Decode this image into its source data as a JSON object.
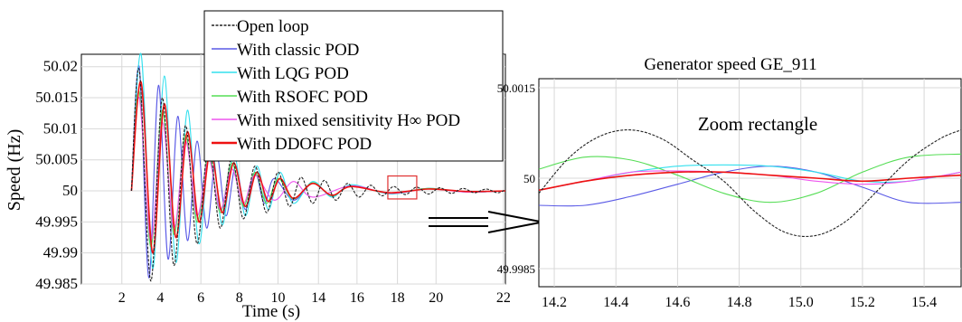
{
  "colors": {
    "open_loop": "#222222",
    "classic": "#5a5ae6",
    "lqg": "#33e0ee",
    "rsofc": "#55dd55",
    "mixed": "#ee55ee",
    "ddofc": "#ee1111",
    "zoom_rect": "#e03030",
    "grid": "#d8d8d8"
  },
  "chart_data": [
    {
      "type": "line",
      "title": "",
      "xlabel": "Time (s)",
      "ylabel": "Speed (Hz)",
      "xlim": [
        0,
        22
      ],
      "ylim": [
        49.985,
        50.022
      ],
      "x_ticks": [
        "2",
        "4",
        "6",
        "8",
        "10",
        "14",
        "16",
        "18",
        "20",
        "22"
      ],
      "y_ticks": [
        "50.02",
        "50.015",
        "50.01",
        "50.005",
        "50",
        "49.995",
        "49.99",
        "49.985"
      ],
      "grid": true,
      "legend_position": "top-center",
      "series": [
        {
          "name": "Open loop",
          "color_key": "open_loop",
          "style": "dashed",
          "x": [
            2.6,
            3.0,
            3.6,
            4.2,
            4.8,
            5.4,
            6.0,
            6.6,
            7.2,
            7.8,
            8.4,
            9.0,
            9.6,
            10.2,
            10.8,
            11.4,
            12.0,
            12.6,
            13.2,
            13.8,
            14.4,
            15.0,
            15.6,
            16.2,
            16.8,
            17.4,
            18.0,
            18.6,
            19.2,
            19.8,
            20.4,
            21.0,
            21.6,
            22.0
          ],
          "y": [
            50.0,
            50.0195,
            49.9855,
            50.015,
            49.988,
            50.0105,
            49.9915,
            50.0075,
            49.994,
            50.0055,
            49.9955,
            50.004,
            49.9965,
            50.003,
            49.9975,
            50.0022,
            49.998,
            50.0017,
            49.9985,
            50.0012,
            49.999,
            50.0009,
            49.9992,
            50.0007,
            49.9994,
            50.0006,
            49.9995,
            50.0005,
            49.9996,
            50.0004,
            49.9997,
            50.0003,
            49.9997,
            50.0002
          ]
        },
        {
          "name": "With classic POD",
          "color_key": "classic",
          "style": "solid",
          "x": [
            2.6,
            3.0,
            3.5,
            4.0,
            4.5,
            5.0,
            5.5,
            6.0,
            6.5,
            7.0,
            7.5,
            8.0,
            8.5,
            9.0,
            9.5,
            10.0,
            11.0,
            12.0,
            13.0,
            14.0,
            16.0,
            18.0,
            20.0,
            22.0
          ],
          "y": [
            50.0,
            50.02,
            49.986,
            50.017,
            49.989,
            50.012,
            49.992,
            50.008,
            49.994,
            50.006,
            49.996,
            50.004,
            49.997,
            50.003,
            49.998,
            50.002,
            49.9985,
            50.0012,
            49.9992,
            50.0008,
            49.9996,
            50.0004,
            49.9998,
            50.0
          ]
        },
        {
          "name": "With LQG POD",
          "color_key": "lqg",
          "style": "solid",
          "x": [
            2.6,
            3.1,
            3.7,
            4.3,
            4.9,
            5.5,
            6.1,
            6.7,
            7.3,
            7.9,
            8.5,
            9.1,
            9.7,
            10.3,
            11.0,
            12.0,
            13.0,
            14.0,
            16.0,
            18.0,
            20.0,
            22.0
          ],
          "y": [
            50.0,
            50.022,
            49.9875,
            50.0185,
            49.9885,
            50.013,
            49.9915,
            50.0085,
            49.9945,
            50.006,
            49.996,
            50.004,
            49.997,
            50.003,
            49.998,
            50.0015,
            49.999,
            50.001,
            49.9995,
            50.0004,
            49.9998,
            50.0
          ]
        },
        {
          "name": "With RSOFC POD",
          "color_key": "rsofc",
          "style": "solid",
          "x": [
            2.6,
            3.0,
            3.6,
            4.2,
            4.8,
            5.4,
            6.0,
            6.6,
            7.2,
            7.8,
            8.4,
            9.0,
            9.6,
            10.2,
            11.0,
            12.0,
            13.0,
            14.0,
            16.0,
            18.0,
            20.0,
            22.0
          ],
          "y": [
            50.0,
            50.016,
            49.991,
            50.013,
            49.993,
            50.009,
            49.995,
            50.006,
            49.9965,
            50.0045,
            49.9975,
            50.003,
            49.998,
            50.002,
            49.9987,
            50.0013,
            49.9992,
            50.0008,
            49.9996,
            50.0004,
            49.9998,
            50.0
          ]
        },
        {
          "name": "With mixed sensitivity H∞ POD",
          "color_key": "mixed",
          "style": "solid",
          "x": [
            2.6,
            3.0,
            3.6,
            4.2,
            4.8,
            5.4,
            6.0,
            6.6,
            7.2,
            7.8,
            8.4,
            9.0,
            10.0,
            11.0,
            12.0,
            14.0,
            16.0,
            18.0,
            20.0,
            22.0
          ],
          "y": [
            50.0,
            50.015,
            49.992,
            50.011,
            49.994,
            50.008,
            49.996,
            50.005,
            49.997,
            50.0035,
            49.998,
            50.0025,
            49.9985,
            50.0015,
            49.999,
            50.0008,
            49.9996,
            50.0003,
            49.9998,
            50.0
          ]
        },
        {
          "name": "With DDOFC POD",
          "color_key": "ddofc",
          "style": "solid",
          "x": [
            2.6,
            3.1,
            3.7,
            4.3,
            4.9,
            5.5,
            6.1,
            6.7,
            7.3,
            7.9,
            8.5,
            9.1,
            9.7,
            10.3,
            11.0,
            12.0,
            13.0,
            14.0,
            16.0,
            18.0,
            20.0,
            22.0
          ],
          "y": [
            50.0,
            50.0175,
            49.99,
            50.014,
            49.9925,
            50.0095,
            49.995,
            50.0065,
            49.9965,
            50.0045,
            49.9975,
            50.003,
            49.9983,
            50.002,
            49.9988,
            50.0012,
            49.9993,
            50.0007,
            49.9997,
            50.0003,
            49.9999,
            50.0
          ]
        }
      ]
    },
    {
      "type": "line",
      "title": "Generator speed  GE_911",
      "annotation": "Zoom rectangle",
      "xlabel": "",
      "ylabel": "",
      "xlim": [
        14.15,
        15.52
      ],
      "ylim": [
        49.9982,
        50.00165
      ],
      "x_ticks": [
        "14.2",
        "14.4",
        "14.6",
        "14.8",
        "15.0",
        "15.2",
        "15.4"
      ],
      "y_ticks": [
        "50.0015",
        "50",
        "49.9985"
      ],
      "grid": true,
      "series": [
        {
          "name": "Open loop",
          "color_key": "open_loop",
          "style": "dashed",
          "x": [
            14.15,
            14.25,
            14.35,
            14.45,
            14.55,
            14.65,
            14.75,
            14.85,
            14.95,
            15.05,
            15.15,
            15.25,
            15.35,
            15.45,
            15.52
          ],
          "y": [
            49.99975,
            50.00035,
            50.0007,
            50.0008,
            50.00065,
            50.0003,
            49.99995,
            49.99945,
            49.9991,
            49.99905,
            49.9993,
            49.9998,
            50.0003,
            50.00065,
            50.0008
          ]
        },
        {
          "name": "With classic POD",
          "color_key": "classic",
          "style": "solid",
          "x": [
            14.15,
            14.3,
            14.45,
            14.6,
            14.75,
            14.9,
            15.05,
            15.2,
            15.35,
            15.52
          ],
          "y": [
            49.99955,
            49.99955,
            49.9997,
            49.9999,
            50.0001,
            50.0002,
            50.0001,
            49.99985,
            49.9996,
            49.9996
          ]
        },
        {
          "name": "With LQG POD",
          "color_key": "lqg",
          "style": "solid",
          "x": [
            14.15,
            14.3,
            14.45,
            14.6,
            14.75,
            14.9,
            15.05,
            15.2,
            15.35,
            15.52
          ],
          "y": [
            49.9998,
            49.99995,
            50.0001,
            50.0002,
            50.00022,
            50.0002,
            50.0001,
            49.99995,
            49.99995,
            50.0001
          ]
        },
        {
          "name": "With RSOFC POD",
          "color_key": "rsofc",
          "style": "solid",
          "x": [
            14.15,
            14.3,
            14.45,
            14.6,
            14.75,
            14.9,
            15.05,
            15.2,
            15.35,
            15.52
          ],
          "y": [
            50.00015,
            50.00035,
            50.0003,
            50.00005,
            49.99975,
            49.9996,
            49.99975,
            50.0001,
            50.00035,
            50.0004
          ]
        },
        {
          "name": "With mixed sensitivity H∞ POD",
          "color_key": "mixed",
          "style": "solid",
          "x": [
            14.15,
            14.3,
            14.45,
            14.6,
            14.75,
            14.9,
            15.05,
            15.2,
            15.35,
            15.52
          ],
          "y": [
            49.9998,
            49.99995,
            50.0001,
            50.00012,
            50.0001,
            50.00005,
            49.99995,
            49.9999,
            49.99995,
            50.0001
          ]
        },
        {
          "name": "With DDOFC POD",
          "color_key": "ddofc",
          "style": "solid",
          "x": [
            14.15,
            14.3,
            14.45,
            14.6,
            14.75,
            14.9,
            15.05,
            15.2,
            15.35,
            15.52
          ],
          "y": [
            49.9998,
            49.99995,
            50.00005,
            50.0001,
            50.0001,
            50.00005,
            50.0,
            49.99995,
            50.0,
            50.00005
          ]
        }
      ]
    }
  ]
}
